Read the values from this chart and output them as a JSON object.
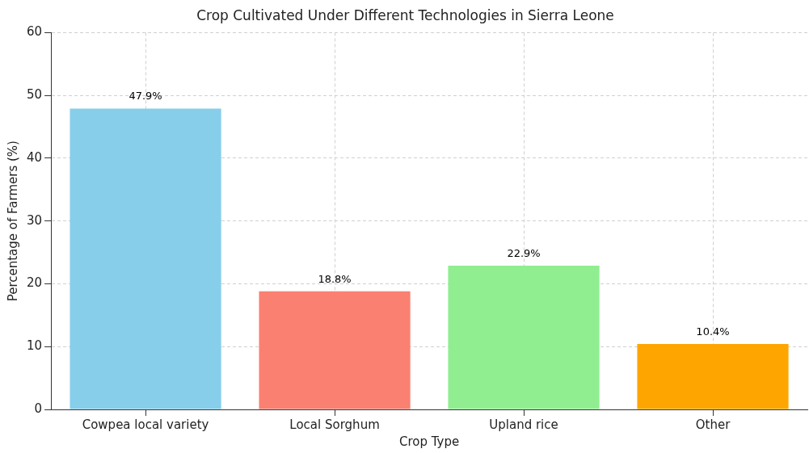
{
  "chart_data": {
    "type": "bar",
    "title": "Crop Cultivated Under Different Technologies in Sierra Leone",
    "xlabel": "Crop Type",
    "ylabel": "Percentage of Farmers (%)",
    "categories": [
      "Cowpea local variety",
      "Local Sorghum",
      "Upland rice",
      "Other"
    ],
    "values": [
      47.9,
      18.8,
      22.9,
      10.4
    ],
    "colors": [
      "#87ceeb",
      "#fa8072",
      "#90ee90",
      "#ffa500"
    ],
    "value_labels": [
      "47.9%",
      "18.8%",
      "22.9%",
      "10.4%"
    ],
    "ylim": [
      0,
      60
    ],
    "yticks": [
      0,
      10,
      20,
      30,
      40,
      50,
      60
    ],
    "grid": true
  }
}
